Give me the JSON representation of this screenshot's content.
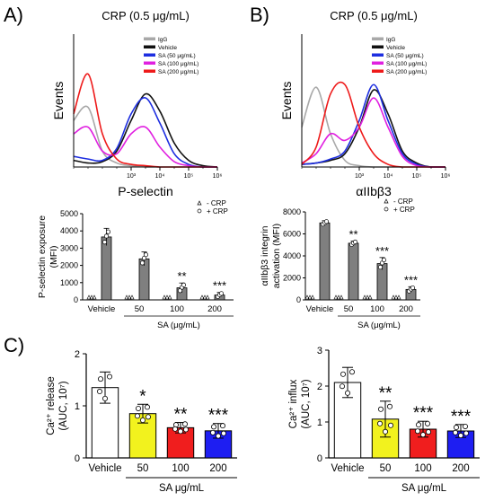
{
  "panel_labels": [
    "A)",
    "B)",
    "C)"
  ],
  "chart_data": [
    {
      "type": "line",
      "title": "CRP (0.5 μg/mL)",
      "xlabel": "P-selectin",
      "ylabel": "Events",
      "x_scale": "log",
      "x_ticks": [
        "10³",
        "10⁴",
        "10⁵",
        "10⁶"
      ],
      "x": [
        1,
        1.5,
        2,
        2.5,
        3,
        3.5,
        4,
        4.5,
        5,
        5.5,
        6
      ],
      "series": [
        {
          "name": "IgG",
          "color": "#a8a8a8",
          "values": [
            0.35,
            0.45,
            0.12,
            0.03,
            0.01,
            0,
            0,
            0,
            0,
            0,
            0
          ]
        },
        {
          "name": "Vehicle",
          "color": "#111111",
          "values": [
            0.05,
            0.03,
            0.04,
            0.12,
            0.35,
            0.55,
            0.42,
            0.18,
            0.05,
            0.01,
            0
          ]
        },
        {
          "name": "SA (50 μg/mL)",
          "color": "#1d2ee0",
          "values": [
            0.08,
            0.06,
            0.05,
            0.14,
            0.4,
            0.52,
            0.33,
            0.1,
            0.02,
            0,
            0
          ]
        },
        {
          "name": "SA (100 μg/mL)",
          "color": "#e020e0",
          "values": [
            0.25,
            0.3,
            0.12,
            0.1,
            0.25,
            0.3,
            0.15,
            0.04,
            0.01,
            0,
            0
          ]
        },
        {
          "name": "SA (200 μg/mL)",
          "color": "#ee1a1a",
          "values": [
            0.4,
            0.7,
            0.25,
            0.06,
            0.02,
            0.01,
            0,
            0,
            0,
            0,
            0
          ]
        }
      ]
    },
    {
      "type": "line",
      "title": "CRP (0.5 μg/mL)",
      "xlabel": "αIIbβ3",
      "ylabel": "Events",
      "x_scale": "log",
      "x_ticks": [
        "10³",
        "10⁴",
        "10⁵",
        "10⁶"
      ],
      "x": [
        1,
        1.5,
        2,
        2.5,
        3,
        3.5,
        4,
        4.5,
        5,
        5.5,
        6
      ],
      "series": [
        {
          "name": "IgG",
          "color": "#a8a8a8",
          "values": [
            0.3,
            0.6,
            0.25,
            0.05,
            0.01,
            0,
            0,
            0,
            0,
            0,
            0
          ]
        },
        {
          "name": "Vehicle",
          "color": "#111111",
          "values": [
            0.02,
            0.03,
            0.05,
            0.1,
            0.3,
            0.58,
            0.4,
            0.12,
            0.03,
            0,
            0
          ]
        },
        {
          "name": "SA (50 μg/mL)",
          "color": "#1d2ee0",
          "values": [
            0.02,
            0.03,
            0.06,
            0.12,
            0.35,
            0.62,
            0.35,
            0.1,
            0.02,
            0,
            0
          ]
        },
        {
          "name": "SA (100 μg/mL)",
          "color": "#e020e0",
          "values": [
            0.03,
            0.1,
            0.25,
            0.2,
            0.3,
            0.52,
            0.3,
            0.08,
            0.01,
            0,
            0
          ]
        },
        {
          "name": "SA (200 μg/mL)",
          "color": "#ee1a1a",
          "values": [
            0.02,
            0.15,
            0.55,
            0.62,
            0.3,
            0.1,
            0.02,
            0,
            0,
            0,
            0
          ]
        }
      ]
    },
    {
      "type": "bar",
      "ylabel": "P-selectin exposure\n(MFI)",
      "ylim": [
        0,
        5000
      ],
      "yticks": [
        0,
        1000,
        2000,
        3000,
        4000,
        5000
      ],
      "categories": [
        "Vehicle",
        "50",
        "100",
        "200"
      ],
      "xlabel": "SA (μg/mL)",
      "legend": [
        "- CRP",
        "+ CRP"
      ],
      "series": [
        {
          "name": "- CRP",
          "values": [
            0,
            0,
            0,
            0
          ]
        },
        {
          "name": "+ CRP",
          "values": [
            3650,
            2380,
            700,
            280
          ],
          "errors": [
            500,
            400,
            280,
            150
          ],
          "significance": [
            "",
            "",
            "**",
            "***"
          ]
        }
      ]
    },
    {
      "type": "bar",
      "ylabel": "αIIbβ3 integrin\nactivation (MFI)",
      "ylim": [
        0,
        8000
      ],
      "yticks": [
        0,
        2000,
        4000,
        6000,
        8000
      ],
      "categories": [
        "Vehicle",
        "50",
        "100",
        "200"
      ],
      "xlabel": "SA (μg/mL)",
      "legend": [
        "- CRP",
        "+ CRP"
      ],
      "series": [
        {
          "name": "- CRP",
          "values": [
            0,
            0,
            0,
            0
          ]
        },
        {
          "name": "+ CRP",
          "values": [
            7000,
            5150,
            3300,
            950
          ],
          "errors": [
            200,
            200,
            550,
            250
          ],
          "significance": [
            "",
            "**",
            "***",
            "***"
          ]
        }
      ]
    },
    {
      "type": "bar",
      "ylabel": "Ca²⁺ release\n(AUC, 10⁷)",
      "ylim": [
        0,
        2
      ],
      "yticks": [
        0,
        1,
        2
      ],
      "categories": [
        "Vehicle",
        "50",
        "100",
        "200"
      ],
      "xlabel": "SA μg/mL",
      "colors": [
        "#ffffff",
        "#f2f21e",
        "#f01e1e",
        "#1e1ef2"
      ],
      "values": [
        1.35,
        0.85,
        0.58,
        0.52
      ],
      "errors": [
        0.3,
        0.18,
        0.1,
        0.14
      ],
      "significance": [
        "",
        "*",
        "**",
        "***"
      ]
    },
    {
      "type": "bar",
      "ylabel": "Ca²⁺ influx\n(AUC, 10⁷)",
      "ylim": [
        0,
        3
      ],
      "yticks": [
        0,
        1,
        2,
        3
      ],
      "categories": [
        "Vehicle",
        "50",
        "100",
        "200"
      ],
      "xlabel": "SA μg/mL",
      "colors": [
        "#ffffff",
        "#f2f21e",
        "#f01e1e",
        "#1e1ef2"
      ],
      "values": [
        2.1,
        1.08,
        0.8,
        0.75
      ],
      "errors": [
        0.42,
        0.5,
        0.22,
        0.18
      ],
      "significance": [
        "",
        "**",
        "***",
        "***"
      ]
    }
  ]
}
